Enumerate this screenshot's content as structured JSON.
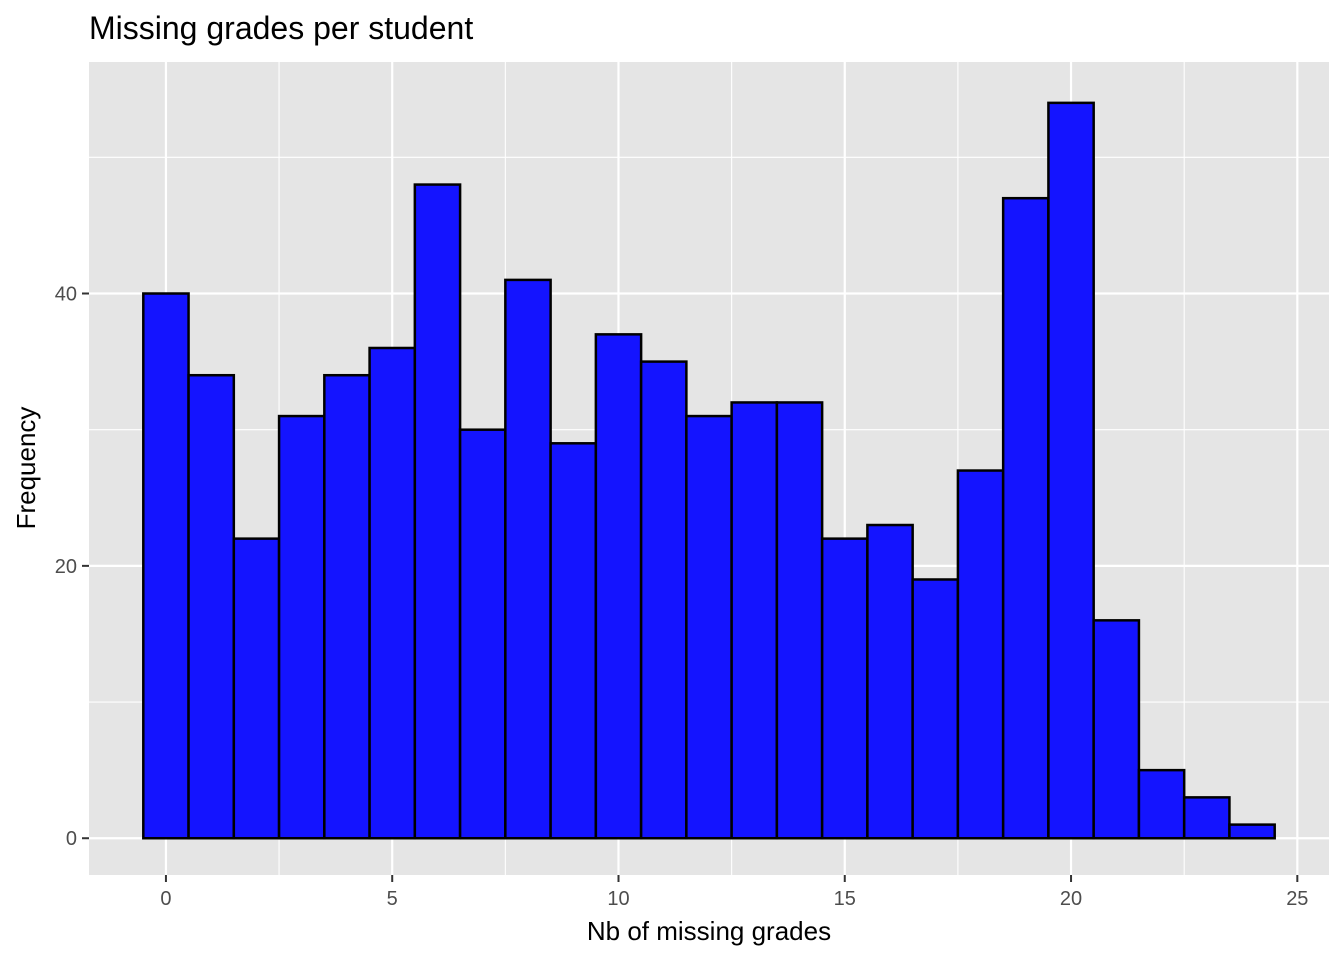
{
  "chart_data": {
    "type": "bar",
    "title": "Missing grades per student",
    "xlabel": "Nb of missing grades",
    "ylabel": "Frequency",
    "xlim": [
      -1.7,
      25.7
    ],
    "ylim": [
      -2.7,
      57
    ],
    "x_ticks": [
      0,
      5,
      10,
      15,
      20,
      25
    ],
    "y_ticks": [
      0,
      20,
      40
    ],
    "bin_width": 1,
    "x": [
      0,
      1,
      2,
      3,
      4,
      5,
      6,
      7,
      8,
      9,
      10,
      11,
      12,
      13,
      14,
      15,
      16,
      17,
      18,
      19,
      20,
      21,
      22,
      23,
      24
    ],
    "values": [
      40,
      34,
      22,
      31,
      34,
      36,
      48,
      30,
      41,
      29,
      37,
      35,
      31,
      32,
      32,
      22,
      23,
      19,
      27,
      47,
      54,
      16,
      5,
      3,
      1
    ],
    "fill_color": "#1414ff",
    "outline_color": "#000000",
    "panel_color": "#e5e5e5",
    "grid": true,
    "legend": "none"
  }
}
